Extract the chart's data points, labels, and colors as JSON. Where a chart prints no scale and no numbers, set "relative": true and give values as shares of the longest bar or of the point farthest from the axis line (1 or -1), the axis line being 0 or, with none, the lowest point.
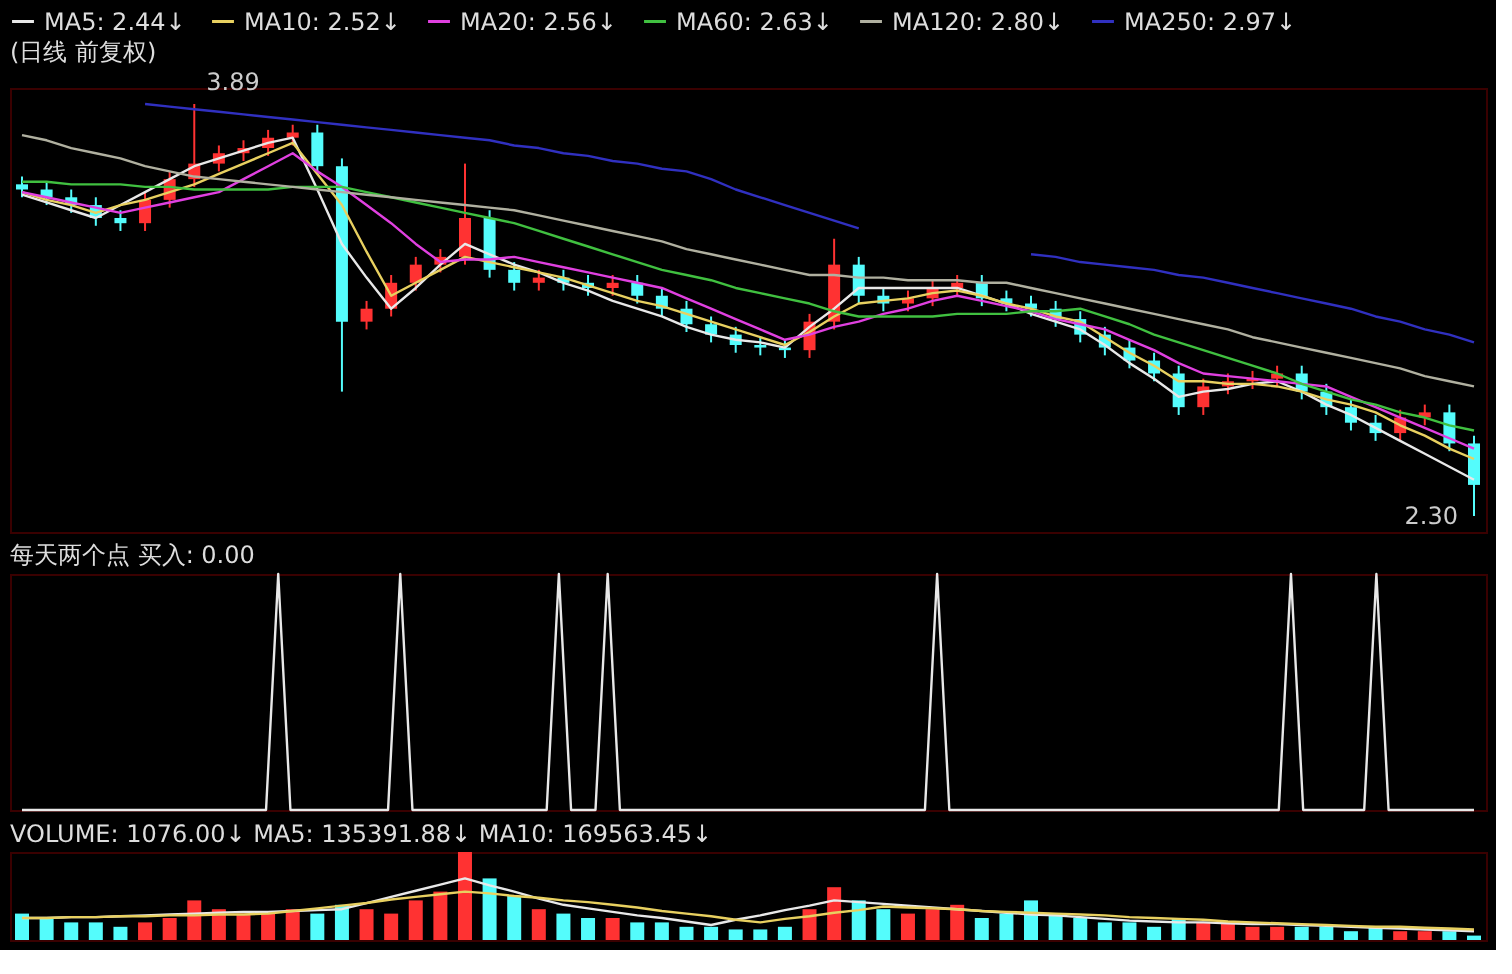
{
  "chart_data": [
    {
      "type": "candlestick",
      "title": "(日线 前复权)",
      "tick_labels": false,
      "legend": "top left",
      "categories": [
        null,
        null,
        null,
        null,
        null,
        null,
        null,
        null,
        null,
        null,
        null,
        null,
        null,
        null,
        null,
        null,
        null,
        null,
        null,
        null,
        null,
        null,
        null,
        null,
        null,
        null,
        null,
        null,
        null,
        null,
        null,
        null,
        null,
        null,
        null,
        null,
        null,
        null,
        null,
        null,
        null,
        null,
        null,
        null,
        null,
        null,
        null,
        null,
        null,
        null,
        null,
        null,
        null,
        null,
        null,
        null,
        null,
        null,
        null,
        null
      ],
      "ohlc": [
        [
          3.58,
          3.61,
          3.53,
          3.56
        ],
        [
          3.56,
          3.59,
          3.5,
          3.53
        ],
        [
          3.53,
          3.56,
          3.47,
          3.5
        ],
        [
          3.5,
          3.53,
          3.42,
          3.45
        ],
        [
          3.45,
          3.48,
          3.4,
          3.43
        ],
        [
          3.43,
          3.55,
          3.4,
          3.52
        ],
        [
          3.52,
          3.63,
          3.49,
          3.6
        ],
        [
          3.6,
          3.89,
          3.57,
          3.66
        ],
        [
          3.66,
          3.73,
          3.63,
          3.7
        ],
        [
          3.7,
          3.75,
          3.67,
          3.72
        ],
        [
          3.72,
          3.79,
          3.69,
          3.76
        ],
        [
          3.76,
          3.81,
          3.73,
          3.78
        ],
        [
          3.78,
          3.81,
          3.62,
          3.65
        ],
        [
          3.65,
          3.68,
          2.78,
          3.05
        ],
        [
          3.05,
          3.13,
          3.02,
          3.1
        ],
        [
          3.1,
          3.23,
          3.07,
          3.2
        ],
        [
          3.2,
          3.3,
          3.17,
          3.27
        ],
        [
          3.27,
          3.33,
          3.24,
          3.3
        ],
        [
          3.3,
          3.66,
          3.27,
          3.45
        ],
        [
          3.45,
          3.48,
          3.22,
          3.25
        ],
        [
          3.25,
          3.28,
          3.17,
          3.2
        ],
        [
          3.2,
          3.25,
          3.17,
          3.22
        ],
        [
          3.22,
          3.25,
          3.17,
          3.2
        ],
        [
          3.2,
          3.23,
          3.15,
          3.18
        ],
        [
          3.18,
          3.23,
          3.15,
          3.2
        ],
        [
          3.2,
          3.23,
          3.12,
          3.15
        ],
        [
          3.15,
          3.18,
          3.07,
          3.1
        ],
        [
          3.1,
          3.13,
          3.01,
          3.04
        ],
        [
          3.04,
          3.07,
          2.97,
          3.0
        ],
        [
          3.0,
          3.03,
          2.93,
          2.96
        ],
        [
          2.96,
          2.99,
          2.92,
          2.95
        ],
        [
          2.95,
          2.98,
          2.91,
          2.94
        ],
        [
          2.94,
          3.08,
          2.91,
          3.05
        ],
        [
          3.05,
          3.37,
          3.02,
          3.27
        ],
        [
          3.27,
          3.3,
          3.12,
          3.15
        ],
        [
          3.15,
          3.18,
          3.09,
          3.12
        ],
        [
          3.12,
          3.17,
          3.09,
          3.14
        ],
        [
          3.14,
          3.21,
          3.11,
          3.18
        ],
        [
          3.18,
          3.23,
          3.15,
          3.2
        ],
        [
          3.2,
          3.23,
          3.11,
          3.14
        ],
        [
          3.14,
          3.17,
          3.09,
          3.12
        ],
        [
          3.12,
          3.15,
          3.07,
          3.1
        ],
        [
          3.1,
          3.13,
          3.03,
          3.06
        ],
        [
          3.06,
          3.09,
          2.97,
          3.0
        ],
        [
          3.0,
          3.03,
          2.92,
          2.95
        ],
        [
          2.95,
          2.98,
          2.87,
          2.9
        ],
        [
          2.9,
          2.93,
          2.82,
          2.85
        ],
        [
          2.85,
          2.88,
          2.69,
          2.72
        ],
        [
          2.72,
          2.83,
          2.69,
          2.8
        ],
        [
          2.8,
          2.85,
          2.77,
          2.82
        ],
        [
          2.82,
          2.86,
          2.79,
          2.83
        ],
        [
          2.83,
          2.88,
          2.8,
          2.85
        ],
        [
          2.85,
          2.88,
          2.75,
          2.78
        ],
        [
          2.78,
          2.81,
          2.69,
          2.72
        ],
        [
          2.72,
          2.75,
          2.63,
          2.66
        ],
        [
          2.66,
          2.69,
          2.59,
          2.62
        ],
        [
          2.62,
          2.71,
          2.59,
          2.68
        ],
        [
          2.68,
          2.73,
          2.65,
          2.7
        ],
        [
          2.7,
          2.73,
          2.55,
          2.58
        ],
        [
          2.58,
          2.61,
          2.3,
          2.42
        ]
      ],
      "colors": [
        "#54fcfc",
        "#54fcfc",
        "#54fcfc",
        "#54fcfc",
        "#54fcfc",
        "#ff3232",
        "#ff3232",
        "#ff3232",
        "#ff3232",
        "#ff3232",
        "#ff3232",
        "#ff3232",
        "#54fcfc",
        "#54fcfc",
        "#ff3232",
        "#ff3232",
        "#ff3232",
        "#ff3232",
        "#ff3232",
        "#54fcfc",
        "#54fcfc",
        "#ff3232",
        "#54fcfc",
        "#54fcfc",
        "#ff3232",
        "#54fcfc",
        "#54fcfc",
        "#54fcfc",
        "#54fcfc",
        "#54fcfc",
        "#54fcfc",
        "#54fcfc",
        "#ff3232",
        "#ff3232",
        "#54fcfc",
        "#54fcfc",
        "#ff3232",
        "#ff3232",
        "#ff3232",
        "#54fcfc",
        "#54fcfc",
        "#54fcfc",
        "#54fcfc",
        "#54fcfc",
        "#54fcfc",
        "#54fcfc",
        "#54fcfc",
        "#54fcfc",
        "#ff3232",
        "#ff3232",
        "#ff3232",
        "#ff3232",
        "#54fcfc",
        "#54fcfc",
        "#54fcfc",
        "#54fcfc",
        "#ff3232",
        "#ff3232",
        "#54fcfc",
        "#54fcfc"
      ],
      "series": [
        {
          "type": "line",
          "name": "MA5: 2.44↓",
          "color": "#e8e8e8",
          "values": [
            3.54,
            3.51,
            3.48,
            3.45,
            3.5,
            3.55,
            3.6,
            3.65,
            3.68,
            3.71,
            3.74,
            3.76,
            3.56,
            3.35,
            3.22,
            3.1,
            3.18,
            3.27,
            3.35,
            3.31,
            3.27,
            3.24,
            3.2,
            3.17,
            3.13,
            3.1,
            3.07,
            3.03,
            3.0,
            2.98,
            2.97,
            2.95,
            3.03,
            3.1,
            3.18,
            3.18,
            3.18,
            3.18,
            3.18,
            3.15,
            3.12,
            3.08,
            3.05,
            3.02,
            2.96,
            2.89,
            2.83,
            2.76,
            2.78,
            2.79,
            2.81,
            2.82,
            2.78,
            2.73,
            2.69,
            2.64,
            2.59,
            2.54,
            2.49,
            2.44
          ]
        },
        {
          "type": "line",
          "name": "MA10: 2.52↓",
          "color": "#e8d060",
          "values": [
            3.55,
            3.52,
            3.5,
            3.47,
            3.5,
            3.52,
            3.55,
            3.58,
            3.62,
            3.66,
            3.7,
            3.74,
            3.62,
            3.5,
            3.32,
            3.15,
            3.2,
            3.25,
            3.3,
            3.28,
            3.26,
            3.24,
            3.22,
            3.19,
            3.16,
            3.13,
            3.11,
            3.08,
            3.05,
            3.02,
            2.99,
            2.96,
            3.01,
            3.07,
            3.12,
            3.13,
            3.14,
            3.16,
            3.17,
            3.15,
            3.12,
            3.1,
            3.07,
            3.05,
            2.99,
            2.93,
            2.88,
            2.82,
            2.82,
            2.81,
            2.81,
            2.8,
            2.78,
            2.75,
            2.73,
            2.7,
            2.65,
            2.61,
            2.56,
            2.52
          ]
        },
        {
          "type": "line",
          "name": "MA20: 2.56↓",
          "color": "#e040e0",
          "values": [
            3.55,
            3.53,
            3.51,
            3.49,
            3.47,
            3.49,
            3.51,
            3.53,
            3.55,
            3.6,
            3.65,
            3.7,
            3.63,
            3.57,
            3.5,
            3.43,
            3.35,
            3.28,
            3.29,
            3.29,
            3.3,
            3.28,
            3.26,
            3.24,
            3.22,
            3.2,
            3.18,
            3.14,
            3.1,
            3.06,
            3.02,
            2.98,
            3.0,
            3.03,
            3.05,
            3.08,
            3.1,
            3.13,
            3.15,
            3.13,
            3.11,
            3.09,
            3.06,
            3.04,
            3.02,
            2.98,
            2.94,
            2.89,
            2.85,
            2.84,
            2.83,
            2.82,
            2.81,
            2.8,
            2.76,
            2.72,
            2.68,
            2.64,
            2.6,
            2.56
          ]
        },
        {
          "type": "line",
          "name": "MA60: 2.63↓",
          "color": "#40c040",
          "values": [
            3.59,
            3.59,
            3.58,
            3.58,
            3.58,
            3.57,
            3.57,
            3.56,
            3.56,
            3.56,
            3.56,
            3.57,
            3.57,
            3.57,
            3.55,
            3.53,
            3.51,
            3.49,
            3.47,
            3.45,
            3.43,
            3.4,
            3.37,
            3.34,
            3.31,
            3.28,
            3.25,
            3.23,
            3.21,
            3.18,
            3.16,
            3.14,
            3.12,
            3.09,
            3.07,
            3.07,
            3.07,
            3.07,
            3.08,
            3.08,
            3.08,
            3.09,
            3.09,
            3.1,
            3.07,
            3.04,
            3.0,
            2.97,
            2.94,
            2.91,
            2.88,
            2.85,
            2.81,
            2.78,
            2.75,
            2.73,
            2.7,
            2.68,
            2.65,
            2.63
          ]
        },
        {
          "type": "line",
          "name": "MA120: 2.80↓",
          "color": "#b0b0a0",
          "values": [
            3.77,
            3.75,
            3.72,
            3.7,
            3.68,
            3.65,
            3.63,
            3.61,
            3.6,
            3.59,
            3.58,
            3.57,
            3.56,
            3.55,
            3.54,
            3.53,
            3.52,
            3.51,
            3.5,
            3.49,
            3.48,
            3.46,
            3.44,
            3.42,
            3.4,
            3.38,
            3.36,
            3.33,
            3.31,
            3.29,
            3.27,
            3.25,
            3.23,
            3.23,
            3.22,
            3.22,
            3.21,
            3.21,
            3.21,
            3.2,
            3.2,
            3.18,
            3.16,
            3.14,
            3.12,
            3.1,
            3.08,
            3.06,
            3.04,
            3.02,
            2.99,
            2.97,
            2.95,
            2.93,
            2.91,
            2.89,
            2.87,
            2.84,
            2.82,
            2.8
          ]
        },
        {
          "type": "line",
          "name": "MA250: 2.97↓",
          "color": "#3030c0",
          "values": [
            null,
            null,
            null,
            null,
            null,
            3.89,
            3.88,
            3.87,
            3.86,
            3.85,
            3.84,
            3.83,
            3.82,
            3.81,
            3.8,
            3.79,
            3.78,
            3.77,
            3.76,
            3.75,
            3.73,
            3.72,
            3.7,
            3.69,
            3.67,
            3.66,
            3.64,
            3.63,
            3.6,
            3.56,
            3.53,
            3.5,
            3.47,
            3.44,
            3.41,
            null,
            null,
            null,
            null,
            null,
            null,
            3.31,
            3.3,
            3.28,
            3.27,
            3.26,
            3.25,
            3.23,
            3.22,
            3.2,
            3.18,
            3.16,
            3.14,
            3.12,
            3.1,
            3.07,
            3.05,
            3.02,
            3.0,
            2.97
          ]
        }
      ],
      "annotations": [
        "3.89",
        "2.30"
      ]
    },
    {
      "type": "line",
      "title": "每天两个点 买入: 0.00",
      "relative": true,
      "tick_labels": false,
      "categories": [
        null,
        null,
        null,
        null,
        null,
        null,
        null,
        null,
        null,
        null,
        null,
        null,
        null,
        null,
        null,
        null,
        null,
        null,
        null,
        null,
        null,
        null,
        null,
        null,
        null,
        null,
        null,
        null,
        null,
        null,
        null,
        null,
        null,
        null,
        null,
        null,
        null,
        null,
        null,
        null,
        null,
        null,
        null,
        null,
        null,
        null,
        null,
        null,
        null,
        null,
        null,
        null,
        null,
        null,
        null,
        null,
        null,
        null,
        null,
        null,
        null,
        null,
        null,
        null,
        null,
        null,
        null,
        null,
        null,
        null,
        null,
        null,
        null,
        null,
        null,
        null,
        null,
        null,
        null,
        null,
        null,
        null,
        null,
        null,
        null,
        null,
        null,
        null,
        null,
        null,
        null,
        null,
        null,
        null,
        null,
        null,
        null,
        null,
        null,
        null,
        null,
        null,
        null,
        null,
        null,
        null,
        null,
        null,
        null,
        null,
        null,
        null,
        null,
        null,
        null,
        null,
        null,
        null,
        null,
        null
      ],
      "series": [
        {
          "type": "line",
          "color": "#e8e8e8",
          "values": [
            0,
            0,
            0,
            0,
            0,
            0,
            0,
            0,
            0,
            0,
            0,
            0,
            0,
            0,
            0,
            0,
            0,
            0,
            0,
            0,
            0,
            1,
            0,
            0,
            0,
            0,
            0,
            0,
            0,
            0,
            0,
            1,
            0,
            0,
            0,
            0,
            0,
            0,
            0,
            0,
            0,
            0,
            0,
            0,
            1,
            0,
            0,
            0,
            1,
            0,
            0,
            0,
            0,
            0,
            0,
            0,
            0,
            0,
            0,
            0,
            0,
            0,
            0,
            0,
            0,
            0,
            0,
            0,
            0,
            0,
            0,
            0,
            0,
            0,
            0,
            1,
            0,
            0,
            0,
            0,
            0,
            0,
            0,
            0,
            0,
            0,
            0,
            0,
            0,
            0,
            0,
            0,
            0,
            0,
            0,
            0,
            0,
            0,
            0,
            0,
            0,
            0,
            0,
            0,
            1,
            0,
            0,
            0,
            0,
            0,
            0,
            1,
            0,
            0,
            0,
            0,
            0,
            0,
            0,
            0
          ]
        }
      ]
    },
    {
      "type": "bar",
      "title": "VOLUME: 1076.00↓ MA5: 135391.88↓ MA10: 169563.45↓",
      "relative": true,
      "tick_labels": false,
      "categories": [
        null,
        null,
        null,
        null,
        null,
        null,
        null,
        null,
        null,
        null,
        null,
        null,
        null,
        null,
        null,
        null,
        null,
        null,
        null,
        null,
        null,
        null,
        null,
        null,
        null,
        null,
        null,
        null,
        null,
        null,
        null,
        null,
        null,
        null,
        null,
        null,
        null,
        null,
        null,
        null,
        null,
        null,
        null,
        null,
        null,
        null,
        null,
        null,
        null,
        null,
        null,
        null,
        null,
        null,
        null,
        null,
        null,
        null,
        null,
        null
      ],
      "values": [
        0.3,
        0.25,
        0.2,
        0.2,
        0.15,
        0.2,
        0.25,
        0.45,
        0.35,
        0.3,
        0.3,
        0.35,
        0.3,
        0.4,
        0.35,
        0.3,
        0.45,
        0.55,
        1,
        0.7,
        0.5,
        0.35,
        0.3,
        0.25,
        0.25,
        0.2,
        0.2,
        0.15,
        0.15,
        0.12,
        0.12,
        0.15,
        0.35,
        0.6,
        0.45,
        0.35,
        0.3,
        0.35,
        0.4,
        0.25,
        0.3,
        0.45,
        0.3,
        0.25,
        0.2,
        0.2,
        0.15,
        0.25,
        0.2,
        0.2,
        0.15,
        0.15,
        0.15,
        0.15,
        0.1,
        0.15,
        0.1,
        0.1,
        0.1,
        0.05
      ],
      "colors": [
        "#54fcfc",
        "#54fcfc",
        "#54fcfc",
        "#54fcfc",
        "#54fcfc",
        "#ff3232",
        "#ff3232",
        "#ff3232",
        "#ff3232",
        "#ff3232",
        "#ff3232",
        "#ff3232",
        "#54fcfc",
        "#54fcfc",
        "#ff3232",
        "#ff3232",
        "#ff3232",
        "#ff3232",
        "#ff3232",
        "#54fcfc",
        "#54fcfc",
        "#ff3232",
        "#54fcfc",
        "#54fcfc",
        "#ff3232",
        "#54fcfc",
        "#54fcfc",
        "#54fcfc",
        "#54fcfc",
        "#54fcfc",
        "#54fcfc",
        "#54fcfc",
        "#ff3232",
        "#ff3232",
        "#54fcfc",
        "#54fcfc",
        "#ff3232",
        "#ff3232",
        "#ff3232",
        "#54fcfc",
        "#54fcfc",
        "#54fcfc",
        "#54fcfc",
        "#54fcfc",
        "#54fcfc",
        "#54fcfc",
        "#54fcfc",
        "#54fcfc",
        "#ff3232",
        "#ff3232",
        "#ff3232",
        "#ff3232",
        "#54fcfc",
        "#54fcfc",
        "#54fcfc",
        "#54fcfc",
        "#ff3232",
        "#ff3232",
        "#54fcfc",
        "#54fcfc"
      ],
      "series": [
        {
          "type": "line",
          "color": "#e8e8e8",
          "values": [
            0.25,
            0.25,
            0.26,
            0.26,
            0.27,
            0.28,
            0.29,
            0.3,
            0.31,
            0.32,
            0.32,
            0.33,
            0.34,
            0.35,
            0.42,
            0.49,
            0.56,
            0.63,
            0.7,
            0.62,
            0.55,
            0.47,
            0.4,
            0.36,
            0.32,
            0.28,
            0.25,
            0.21,
            0.17,
            0.23,
            0.28,
            0.34,
            0.39,
            0.45,
            0.43,
            0.41,
            0.39,
            0.37,
            0.35,
            0.33,
            0.31,
            0.29,
            0.28,
            0.26,
            0.24,
            0.22,
            0.21,
            0.2,
            0.2,
            0.19,
            0.18,
            0.18,
            0.17,
            0.16,
            0.15,
            0.14,
            0.13,
            0.12,
            0.11,
            0.1
          ]
        },
        {
          "type": "line",
          "color": "#e8d060",
          "values": [
            0.25,
            0.25,
            0.26,
            0.26,
            0.27,
            0.27,
            0.28,
            0.28,
            0.29,
            0.29,
            0.3,
            0.33,
            0.36,
            0.39,
            0.42,
            0.46,
            0.49,
            0.52,
            0.55,
            0.53,
            0.5,
            0.48,
            0.45,
            0.43,
            0.4,
            0.37,
            0.33,
            0.3,
            0.27,
            0.23,
            0.2,
            0.24,
            0.27,
            0.31,
            0.34,
            0.38,
            0.37,
            0.36,
            0.35,
            0.33,
            0.32,
            0.31,
            0.3,
            0.29,
            0.28,
            0.26,
            0.25,
            0.24,
            0.23,
            0.21,
            0.2,
            0.19,
            0.18,
            0.17,
            0.16,
            0.15,
            0.15,
            0.14,
            0.13,
            0.12
          ]
        }
      ]
    }
  ]
}
